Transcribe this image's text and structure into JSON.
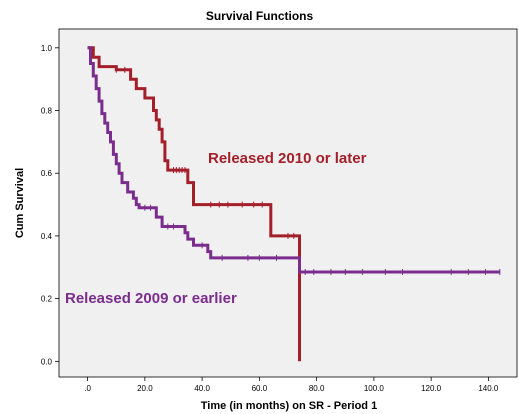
{
  "chart_data": {
    "type": "line",
    "title": "Survival Functions",
    "xlabel": "Time (in months) on SR - Period 1",
    "ylabel": "Cum Survival",
    "xlim": [
      -10,
      150
    ],
    "ylim": [
      -0.05,
      1.06
    ],
    "xticks": [
      0,
      20,
      40,
      60,
      80,
      100,
      120,
      140
    ],
    "xtick_labels": [
      ".0",
      "20.0",
      "40.0",
      "60.0",
      "80.0",
      "100.0",
      "120.0",
      "140.0"
    ],
    "yticks": [
      0,
      0.2,
      0.4,
      0.6,
      0.8,
      1.0
    ],
    "ytick_labels": [
      "0.0",
      "0.2",
      "0.4",
      "0.6",
      "0.8",
      "1.0"
    ],
    "grid": false,
    "plot_background": "#f0f0f0",
    "series": [
      {
        "name": "Released 2010 or later",
        "color": "#a31f2a",
        "values": [
          [
            0,
            1.0
          ],
          [
            2,
            1.0
          ],
          [
            2,
            0.97
          ],
          [
            4,
            0.97
          ],
          [
            4,
            0.94
          ],
          [
            10,
            0.94
          ],
          [
            10,
            0.93
          ],
          [
            15,
            0.93
          ],
          [
            15,
            0.9
          ],
          [
            17,
            0.9
          ],
          [
            17,
            0.87
          ],
          [
            20,
            0.87
          ],
          [
            20,
            0.84
          ],
          [
            23,
            0.84
          ],
          [
            23,
            0.8
          ],
          [
            24,
            0.8
          ],
          [
            24,
            0.77
          ],
          [
            25,
            0.77
          ],
          [
            25,
            0.74
          ],
          [
            26,
            0.74
          ],
          [
            26,
            0.7
          ],
          [
            27,
            0.7
          ],
          [
            27,
            0.64
          ],
          [
            28,
            0.64
          ],
          [
            28,
            0.61
          ],
          [
            35,
            0.61
          ],
          [
            35,
            0.57
          ],
          [
            37,
            0.57
          ],
          [
            37,
            0.5
          ],
          [
            64,
            0.5
          ],
          [
            64,
            0.4
          ],
          [
            74,
            0.4
          ],
          [
            74,
            0.0
          ]
        ]
      },
      {
        "name": "Released 2009 or earlier",
        "color": "#7b2d8e",
        "values": [
          [
            0,
            1.0
          ],
          [
            1,
            1.0
          ],
          [
            1,
            0.95
          ],
          [
            2,
            0.95
          ],
          [
            2,
            0.91
          ],
          [
            3,
            0.91
          ],
          [
            3,
            0.87
          ],
          [
            4,
            0.87
          ],
          [
            4,
            0.83
          ],
          [
            5,
            0.83
          ],
          [
            5,
            0.79
          ],
          [
            6,
            0.79
          ],
          [
            6,
            0.76
          ],
          [
            7,
            0.76
          ],
          [
            7,
            0.73
          ],
          [
            8,
            0.73
          ],
          [
            8,
            0.7
          ],
          [
            9,
            0.7
          ],
          [
            9,
            0.66
          ],
          [
            10,
            0.66
          ],
          [
            10,
            0.63
          ],
          [
            11,
            0.63
          ],
          [
            11,
            0.6
          ],
          [
            12,
            0.6
          ],
          [
            12,
            0.57
          ],
          [
            14,
            0.57
          ],
          [
            14,
            0.54
          ],
          [
            16,
            0.54
          ],
          [
            16,
            0.52
          ],
          [
            17,
            0.52
          ],
          [
            17,
            0.5
          ],
          [
            18,
            0.5
          ],
          [
            18,
            0.49
          ],
          [
            24,
            0.49
          ],
          [
            24,
            0.46
          ],
          [
            26,
            0.46
          ],
          [
            26,
            0.43
          ],
          [
            34,
            0.43
          ],
          [
            34,
            0.41
          ],
          [
            35,
            0.41
          ],
          [
            35,
            0.39
          ],
          [
            37,
            0.39
          ],
          [
            37,
            0.37
          ],
          [
            42,
            0.37
          ],
          [
            42,
            0.35
          ],
          [
            43,
            0.35
          ],
          [
            43,
            0.33
          ],
          [
            74,
            0.33
          ],
          [
            74,
            0.285
          ],
          [
            144,
            0.285
          ]
        ]
      }
    ],
    "censor_marks": [
      {
        "series": 0,
        "x": [
          10,
          13,
          30,
          31,
          32,
          33,
          34,
          43,
          46,
          49,
          54,
          58,
          61,
          70,
          72
        ]
      },
      {
        "series": 1,
        "x": [
          20,
          22,
          28,
          30,
          40,
          47,
          56,
          60,
          66,
          76,
          79,
          85,
          90,
          96,
          104,
          110,
          127,
          133,
          139,
          144
        ]
      }
    ],
    "annotations": [
      {
        "text": "Released 2010 or later",
        "series": 0
      },
      {
        "text": "Released 2009 or earlier",
        "series": 1
      }
    ]
  }
}
